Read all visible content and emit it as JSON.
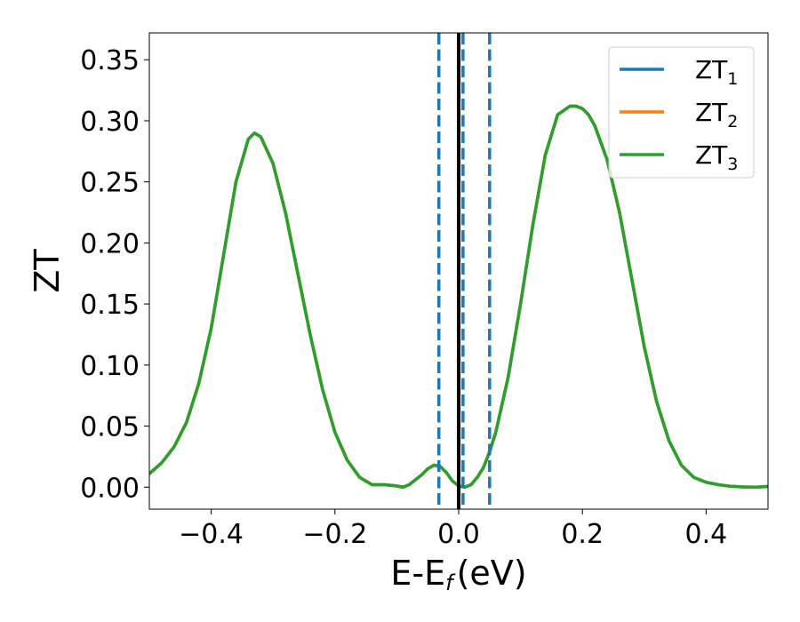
{
  "chart_data": {
    "type": "line",
    "xlabel": "E-E",
    "xlabel_subscript": "f",
    "xlabel_unit": "(eV)",
    "ylabel": "ZT",
    "xlim": [
      -0.5,
      0.5
    ],
    "ylim": [
      -0.018,
      0.372
    ],
    "xticks": [
      -0.4,
      -0.2,
      0.0,
      0.2,
      0.4
    ],
    "xtick_labels": [
      "−0.4",
      "−0.2",
      "0.0",
      "0.2",
      "0.4"
    ],
    "yticks": [
      0.0,
      0.05,
      0.1,
      0.15,
      0.2,
      0.25,
      0.3,
      0.35
    ],
    "ytick_labels": [
      "0.00",
      "0.05",
      "0.10",
      "0.15",
      "0.20",
      "0.25",
      "0.30",
      "0.35"
    ],
    "grid": false,
    "legend": {
      "placement": "top-right",
      "entries": [
        {
          "label": "ZT",
          "sub": "1",
          "color": "#1f77b4"
        },
        {
          "label": "ZT",
          "sub": "2",
          "color": "#ff7f0e"
        },
        {
          "label": "ZT",
          "sub": "3",
          "color": "#2ca02c"
        }
      ]
    },
    "x": [
      -0.5,
      -0.48,
      -0.46,
      -0.44,
      -0.42,
      -0.4,
      -0.38,
      -0.36,
      -0.34,
      -0.33,
      -0.32,
      -0.3,
      -0.28,
      -0.26,
      -0.24,
      -0.22,
      -0.2,
      -0.18,
      -0.16,
      -0.14,
      -0.12,
      -0.1,
      -0.09,
      -0.08,
      -0.06,
      -0.05,
      -0.04,
      -0.03,
      -0.02,
      -0.01,
      0.0,
      0.01,
      0.02,
      0.03,
      0.04,
      0.05,
      0.06,
      0.08,
      0.1,
      0.12,
      0.14,
      0.16,
      0.18,
      0.19,
      0.2,
      0.21,
      0.22,
      0.24,
      0.26,
      0.28,
      0.3,
      0.32,
      0.34,
      0.36,
      0.38,
      0.4,
      0.42,
      0.44,
      0.46,
      0.48,
      0.5
    ],
    "series": [
      {
        "name": "ZT1",
        "color": "#1f77b4",
        "values": [
          0.011,
          0.02,
          0.033,
          0.053,
          0.085,
          0.13,
          0.19,
          0.25,
          0.285,
          0.29,
          0.287,
          0.265,
          0.225,
          0.175,
          0.125,
          0.08,
          0.045,
          0.022,
          0.008,
          0.002,
          0.002,
          0.001,
          0.0,
          0.002,
          0.01,
          0.015,
          0.018,
          0.017,
          0.012,
          0.005,
          0.001,
          0.0,
          0.002,
          0.008,
          0.016,
          0.029,
          0.045,
          0.09,
          0.15,
          0.215,
          0.272,
          0.305,
          0.312,
          0.312,
          0.31,
          0.305,
          0.296,
          0.268,
          0.225,
          0.17,
          0.115,
          0.07,
          0.038,
          0.018,
          0.008,
          0.004,
          0.002,
          0.0007,
          0.0002,
          0.0,
          0.0006
        ]
      },
      {
        "name": "ZT2",
        "color": "#ff7f0e",
        "values": [
          0.011,
          0.02,
          0.033,
          0.053,
          0.085,
          0.13,
          0.19,
          0.25,
          0.285,
          0.29,
          0.287,
          0.265,
          0.225,
          0.175,
          0.125,
          0.08,
          0.045,
          0.022,
          0.008,
          0.002,
          0.002,
          0.001,
          0.0,
          0.002,
          0.01,
          0.015,
          0.018,
          0.017,
          0.012,
          0.005,
          0.001,
          0.0,
          0.002,
          0.008,
          0.016,
          0.029,
          0.045,
          0.09,
          0.15,
          0.215,
          0.272,
          0.305,
          0.312,
          0.312,
          0.31,
          0.305,
          0.296,
          0.268,
          0.225,
          0.17,
          0.115,
          0.07,
          0.038,
          0.018,
          0.008,
          0.004,
          0.002,
          0.0007,
          0.0002,
          0.0,
          0.0006
        ]
      },
      {
        "name": "ZT3",
        "color": "#2ca02c",
        "values": [
          0.011,
          0.02,
          0.033,
          0.053,
          0.085,
          0.13,
          0.19,
          0.25,
          0.285,
          0.29,
          0.287,
          0.265,
          0.225,
          0.175,
          0.125,
          0.08,
          0.045,
          0.022,
          0.008,
          0.002,
          0.002,
          0.001,
          0.0,
          0.002,
          0.01,
          0.015,
          0.018,
          0.017,
          0.012,
          0.005,
          0.001,
          0.0,
          0.002,
          0.008,
          0.016,
          0.029,
          0.045,
          0.09,
          0.15,
          0.215,
          0.272,
          0.305,
          0.312,
          0.312,
          0.31,
          0.305,
          0.296,
          0.268,
          0.225,
          0.17,
          0.115,
          0.07,
          0.038,
          0.018,
          0.008,
          0.004,
          0.002,
          0.0007,
          0.0002,
          0.0,
          0.0006
        ]
      }
    ],
    "vlines": [
      {
        "x": -0.032,
        "style": "dashed",
        "color": "#1f77b4"
      },
      {
        "x": 0.007,
        "style": "dashed",
        "color": "#1f77b4"
      },
      {
        "x": 0.05,
        "style": "dashed",
        "color": "#1f77b4"
      },
      {
        "x": 0.0,
        "style": "solid",
        "color": "#000000"
      }
    ]
  }
}
